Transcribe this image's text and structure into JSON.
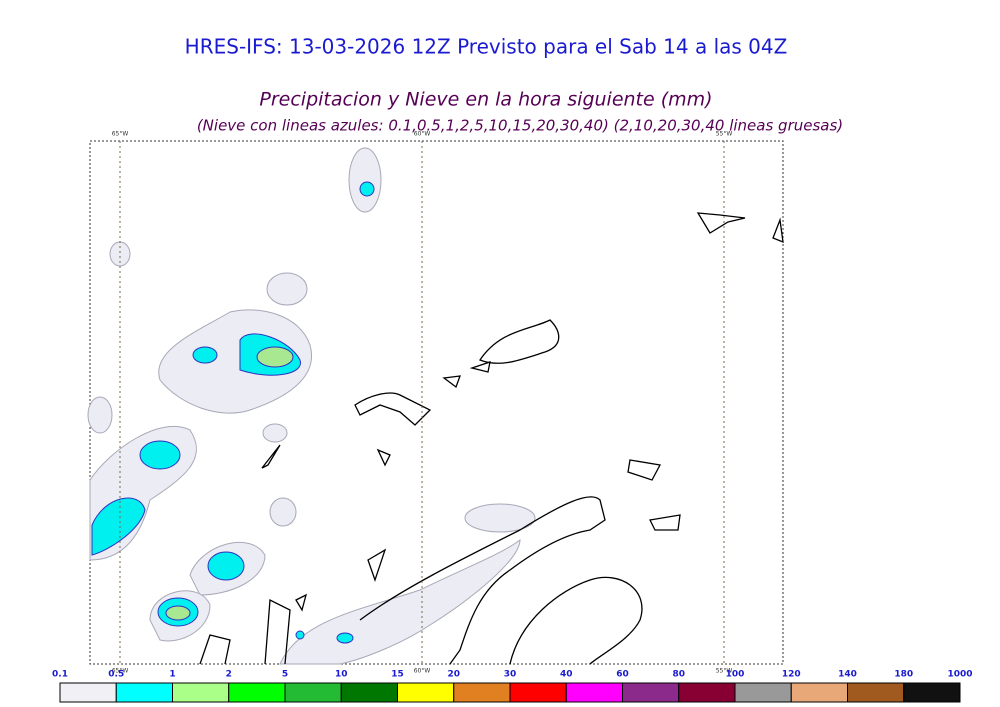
{
  "header": {
    "title": "HRES-IFS: 13-03-2026 12Z Previsto para el Sab 14 a las 04Z",
    "subtitle": "Precipitacion y Nieve en la hora siguiente (mm)",
    "note": "(Nieve con lineas azules: 0.1,0.5,1,2,5,10,15,20,30,40)  (2,10,20,30,40 lineas gruesas)"
  },
  "map": {
    "meridian_labels": [
      "65°W",
      "60°W",
      "55°W"
    ]
  },
  "colorbar": {
    "labels": [
      0.1,
      0.5,
      1,
      2,
      5,
      10,
      15,
      20,
      30,
      40,
      60,
      80,
      100,
      120,
      140,
      180,
      1000
    ],
    "colors": [
      "#f0f0f5",
      "#00ffff",
      "#aaff88",
      "#00ff00",
      "#22bb33",
      "#007700",
      "#ffff00",
      "#e08020",
      "#ff0000",
      "#ff00ff",
      "#8b2a8a",
      "#880033",
      "#999999",
      "#e8a878",
      "#a05a20",
      "#111111"
    ]
  }
}
